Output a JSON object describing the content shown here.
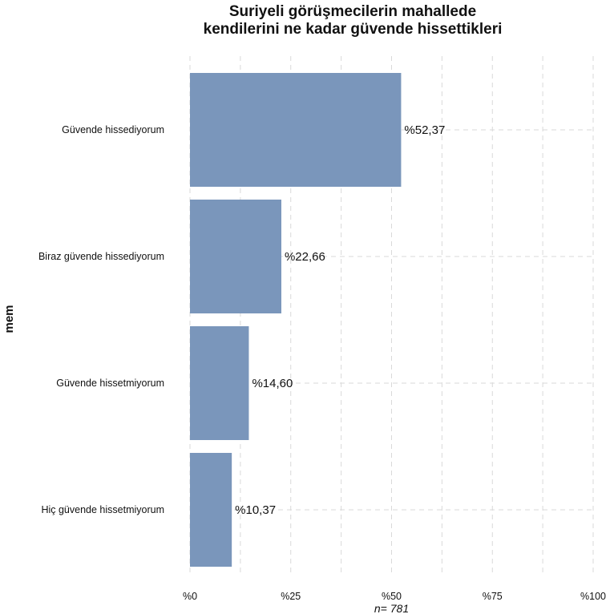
{
  "chart_data": {
    "type": "bar",
    "orientation": "horizontal",
    "title_lines": [
      "Suriyeli görüşmecilerin mahallede",
      "kendilerini ne kadar güvende hissettikleri"
    ],
    "ylabel": "mem",
    "xlabel": "n= 781",
    "categories": [
      "Güvende hissediyorum",
      "Biraz güvende hissediyorum",
      "Güvende hissetmiyorum",
      "Hiç güvende hissetmiyorum"
    ],
    "values": [
      52.37,
      22.66,
      14.6,
      10.37
    ],
    "value_labels": [
      "%52,37",
      "%22,66",
      "%14,60",
      "%10,37"
    ],
    "xlim": [
      0,
      100
    ],
    "xticks": [
      0,
      25,
      50,
      75,
      100
    ],
    "xtick_labels": [
      "%0",
      "%25",
      "%50",
      "%75",
      "%100"
    ],
    "grid": true,
    "bar_color": "#7a96bb",
    "grid_color": "#d9d9d9"
  }
}
